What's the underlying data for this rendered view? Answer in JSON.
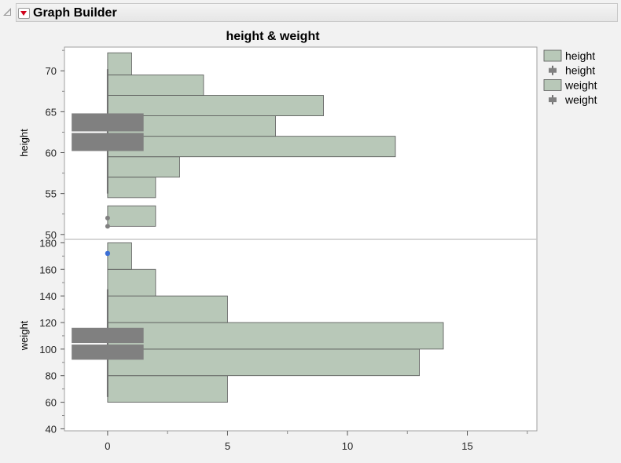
{
  "app": {
    "title": "Graph Builder"
  },
  "colors": {
    "bar_fill": "#b8c8b8",
    "bar_stroke": "#555555",
    "box_fill": "#808080",
    "point": "#808080",
    "highlight_point": "#3b6fd6"
  },
  "legend": {
    "items": [
      {
        "label": "height",
        "kind": "bar"
      },
      {
        "label": "height",
        "kind": "box"
      },
      {
        "label": "weight",
        "kind": "bar"
      },
      {
        "label": "weight",
        "kind": "box"
      }
    ]
  },
  "chart_data": {
    "type": "bar",
    "title": "height & weight",
    "x_axis": {
      "ticks": [
        0,
        5,
        10,
        15
      ],
      "range": [
        -1.8,
        17.9
      ]
    },
    "panels": [
      {
        "ylabel": "height",
        "y_range": [
          49.5,
          72.9
        ],
        "y_ticks": [
          50,
          55,
          60,
          65,
          70
        ],
        "bins": [
          {
            "lo": 51,
            "hi": 53.5,
            "count": 2
          },
          {
            "lo": 54.5,
            "hi": 57,
            "count": 2
          },
          {
            "lo": 57,
            "hi": 59.5,
            "count": 3
          },
          {
            "lo": 59.5,
            "hi": 62,
            "count": 12
          },
          {
            "lo": 62,
            "hi": 64.5,
            "count": 7
          },
          {
            "lo": 64.5,
            "hi": 67,
            "count": 9
          },
          {
            "lo": 67,
            "hi": 69.5,
            "count": 4
          },
          {
            "lo": 69.5,
            "hi": 72.2,
            "count": 1
          }
        ],
        "box": {
          "whisker_lo": 55,
          "q1": 60.2,
          "median": 62.5,
          "q3": 64.8,
          "whisker_hi": 70.2
        },
        "outliers": [
          52,
          51
        ],
        "highlighted": []
      },
      {
        "ylabel": "weight",
        "y_range": [
          38.5,
          182
        ],
        "y_ticks": [
          40,
          60,
          80,
          100,
          120,
          140,
          160,
          180
        ],
        "bins": [
          {
            "lo": 60,
            "hi": 80,
            "count": 5
          },
          {
            "lo": 80,
            "hi": 100,
            "count": 13
          },
          {
            "lo": 100,
            "hi": 120,
            "count": 14
          },
          {
            "lo": 120,
            "hi": 140,
            "count": 5
          },
          {
            "lo": 140,
            "hi": 160,
            "count": 2
          },
          {
            "lo": 160,
            "hi": 180,
            "count": 1
          }
        ],
        "box": {
          "whisker_lo": 64,
          "q1": 92,
          "median": 104,
          "q3": 116,
          "whisker_hi": 145
        },
        "outliers": [],
        "highlighted": [
          172
        ]
      }
    ]
  }
}
